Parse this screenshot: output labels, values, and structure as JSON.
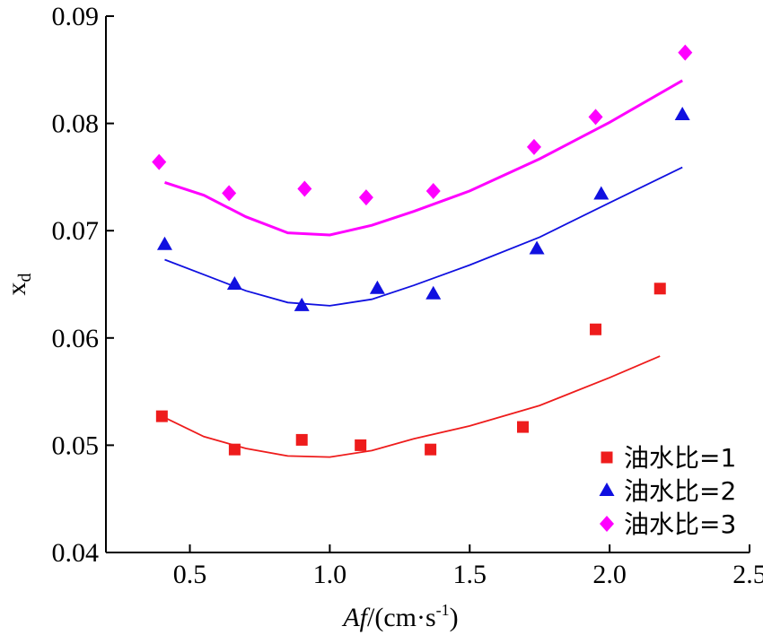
{
  "chart_data": {
    "type": "scatter",
    "xlabel": {
      "italic": "Af",
      "rest": "/(cm·s",
      "sup": "-1",
      "close": ")"
    },
    "ylabel": {
      "main": "x",
      "sub": "d"
    },
    "xlim": [
      0.2,
      2.5
    ],
    "ylim": [
      0.04,
      0.09
    ],
    "xticks": [
      0.5,
      1.0,
      1.5,
      2.0,
      2.5
    ],
    "xtick_labels": [
      "0.5",
      "1.0",
      "1.5",
      "2.0",
      "2.5"
    ],
    "yticks": [
      0.04,
      0.05,
      0.06,
      0.07,
      0.08,
      0.09
    ],
    "ytick_labels": [
      "0.04",
      "0.05",
      "0.06",
      "0.07",
      "0.08",
      "0.09"
    ],
    "grid": false,
    "legend_position": "bottom-right",
    "series": [
      {
        "name": "油水比=1",
        "marker": "square",
        "color": "#ee1c1c",
        "points": [
          [
            0.4,
            0.0527
          ],
          [
            0.66,
            0.0496
          ],
          [
            0.9,
            0.0505
          ],
          [
            1.11,
            0.05
          ],
          [
            1.36,
            0.0496
          ],
          [
            1.69,
            0.0517
          ],
          [
            1.95,
            0.0608
          ],
          [
            2.18,
            0.0646
          ]
        ],
        "fit": [
          [
            0.4,
            0.0527
          ],
          [
            0.55,
            0.0508
          ],
          [
            0.7,
            0.0497
          ],
          [
            0.85,
            0.049
          ],
          [
            1.0,
            0.0489
          ],
          [
            1.15,
            0.0495
          ],
          [
            1.3,
            0.0506
          ],
          [
            1.5,
            0.0518
          ],
          [
            1.75,
            0.0537
          ],
          [
            2.0,
            0.0563
          ],
          [
            2.18,
            0.0583
          ]
        ]
      },
      {
        "name": "油水比=2",
        "marker": "triangle",
        "color": "#1010e0",
        "points": [
          [
            0.41,
            0.0687
          ],
          [
            0.66,
            0.065
          ],
          [
            0.9,
            0.063
          ],
          [
            1.17,
            0.0646
          ],
          [
            1.37,
            0.0641
          ],
          [
            1.74,
            0.0683
          ],
          [
            1.97,
            0.0734
          ],
          [
            2.26,
            0.0808
          ]
        ],
        "fit": [
          [
            0.41,
            0.0673
          ],
          [
            0.55,
            0.0659
          ],
          [
            0.7,
            0.0644
          ],
          [
            0.85,
            0.0633
          ],
          [
            1.0,
            0.063
          ],
          [
            1.15,
            0.0636
          ],
          [
            1.3,
            0.0649
          ],
          [
            1.5,
            0.0668
          ],
          [
            1.75,
            0.0694
          ],
          [
            2.0,
            0.0726
          ],
          [
            2.26,
            0.0759
          ]
        ]
      },
      {
        "name": "油水比=3",
        "marker": "diamond",
        "color": "#ff00ff",
        "points": [
          [
            0.39,
            0.0764
          ],
          [
            0.64,
            0.0735
          ],
          [
            0.91,
            0.0739
          ],
          [
            1.13,
            0.0731
          ],
          [
            1.37,
            0.0737
          ],
          [
            1.73,
            0.0778
          ],
          [
            1.95,
            0.0806
          ],
          [
            2.27,
            0.0866
          ]
        ],
        "fit": [
          [
            0.41,
            0.0745
          ],
          [
            0.55,
            0.0733
          ],
          [
            0.7,
            0.0713
          ],
          [
            0.85,
            0.0698
          ],
          [
            1.0,
            0.0696
          ],
          [
            1.15,
            0.0705
          ],
          [
            1.3,
            0.0718
          ],
          [
            1.5,
            0.0737
          ],
          [
            1.75,
            0.0767
          ],
          [
            2.0,
            0.0801
          ],
          [
            2.26,
            0.084
          ]
        ]
      }
    ]
  }
}
